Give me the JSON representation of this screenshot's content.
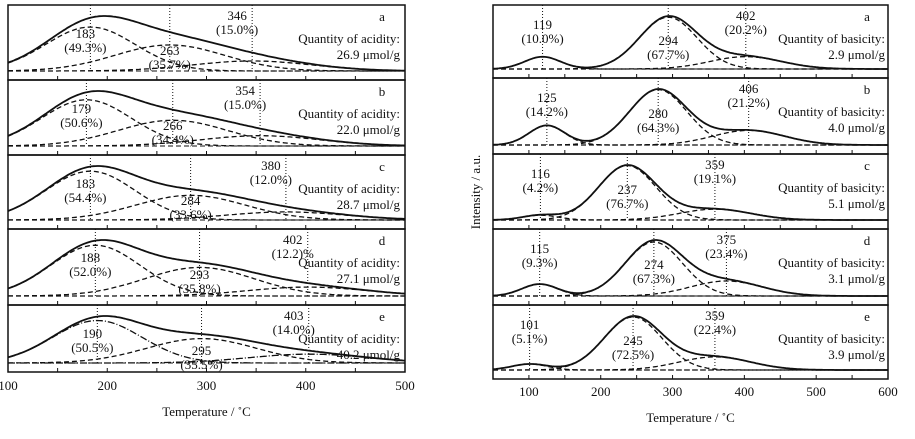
{
  "chart_data": [
    {
      "type": "line",
      "xlabel": "Temperature / ˚C",
      "ylabel": "",
      "xlim": [
        100,
        500
      ],
      "xticks": [
        "100",
        "200",
        "300",
        "400",
        "500"
      ],
      "xtick_values": [
        100,
        200,
        300,
        400,
        500
      ],
      "grid": false,
      "panels": [
        {
          "letter": "a",
          "quantity_label": "Quantity of acidity:",
          "quantity": "26.9  μmol/g",
          "peaks": [
            {
              "temp": 183,
              "share": 49.3,
              "pct_label": "(49.3%)"
            },
            {
              "temp": 263,
              "share": 35.7,
              "pct_label": "(35.7%)"
            },
            {
              "temp": 346,
              "share": 15.0,
              "pct_label": "(15.0%)"
            }
          ]
        },
        {
          "letter": "b",
          "quantity_label": "Quantity of acidity:",
          "quantity": "22.0  μmol/g",
          "peaks": [
            {
              "temp": 179,
              "share": 50.6,
              "pct_label": "(50.6%)"
            },
            {
              "temp": 266,
              "share": 34.4,
              "pct_label": "(34.4%)"
            },
            {
              "temp": 354,
              "share": 15.0,
              "pct_label": "(15.0%)"
            }
          ]
        },
        {
          "letter": "c",
          "quantity_label": "Quantity of acidity:",
          "quantity": "28.7  μmol/g",
          "peaks": [
            {
              "temp": 183,
              "share": 54.4,
              "pct_label": "(54.4%)"
            },
            {
              "temp": 284,
              "share": 33.6,
              "pct_label": "(33.6%)"
            },
            {
              "temp": 380,
              "share": 12.0,
              "pct_label": "(12.0%)"
            }
          ]
        },
        {
          "letter": "d",
          "quantity_label": "Quantity of acidity:",
          "quantity": "27.1  μmol/g",
          "peaks": [
            {
              "temp": 188,
              "share": 52.0,
              "pct_label": "(52.0%)"
            },
            {
              "temp": 293,
              "share": 35.8,
              "pct_label": "(35.8%)"
            },
            {
              "temp": 402,
              "share": 12.2,
              "pct_label": "(12.2)%"
            }
          ]
        },
        {
          "letter": "e",
          "quantity_label": "Quantity of acidity:",
          "quantity": "40.2  μmol/g",
          "peaks": [
            {
              "temp": 190,
              "share": 50.5,
              "pct_label": "(50.5%)"
            },
            {
              "temp": 295,
              "share": 35.5,
              "pct_label": "(35.5%)"
            },
            {
              "temp": 403,
              "share": 14.0,
              "pct_label": "(14.0%)"
            }
          ]
        }
      ]
    },
    {
      "type": "line",
      "xlabel": "Temperature / ˚C",
      "ylabel": "Intensity / a.u.",
      "xlim": [
        50,
        600
      ],
      "xticks": [
        "100",
        "200",
        "300",
        "400",
        "500",
        "600"
      ],
      "xtick_values": [
        100,
        200,
        300,
        400,
        500,
        600
      ],
      "grid": false,
      "panels": [
        {
          "letter": "a",
          "quantity_label": "Quantity of basicity:",
          "quantity": "2.9  μmol/g",
          "peaks": [
            {
              "temp": 119,
              "share": 10.0,
              "pct_label": "(10.0%)"
            },
            {
              "temp": 294,
              "share": 67.7,
              "pct_label": "(67.7%)"
            },
            {
              "temp": 402,
              "share": 20.2,
              "pct_label": "(20.2%)"
            }
          ]
        },
        {
          "letter": "b",
          "quantity_label": "Quantity of basicity:",
          "quantity": "4.0  μmol/g",
          "peaks": [
            {
              "temp": 125,
              "share": 14.2,
              "pct_label": "(14.2%)"
            },
            {
              "temp": 280,
              "share": 64.3,
              "pct_label": "(64.3%)"
            },
            {
              "temp": 406,
              "share": 21.2,
              "pct_label": "(21.2%)"
            }
          ]
        },
        {
          "letter": "c",
          "quantity_label": "Quantity of basicity:",
          "quantity": "5.1  μmol/g",
          "peaks": [
            {
              "temp": 116,
              "share": 4.2,
              "pct_label": "(4.2%)"
            },
            {
              "temp": 237,
              "share": 76.7,
              "pct_label": "(76.7%)"
            },
            {
              "temp": 359,
              "share": 19.1,
              "pct_label": "(19.1%)"
            }
          ]
        },
        {
          "letter": "d",
          "quantity_label": "Quantity of basicity:",
          "quantity": "3.1  μmol/g",
          "peaks": [
            {
              "temp": 115,
              "share": 9.3,
              "pct_label": "(9.3%)"
            },
            {
              "temp": 274,
              "share": 67.3,
              "pct_label": "(67.3%)"
            },
            {
              "temp": 375,
              "share": 23.4,
              "pct_label": "(23.4%)"
            }
          ]
        },
        {
          "letter": "e",
          "quantity_label": "Quantity of basicity:",
          "quantity": "3.9  μmol/g",
          "peaks": [
            {
              "temp": 101,
              "share": 5.1,
              "pct_label": "(5.1%)"
            },
            {
              "temp": 245,
              "share": 72.5,
              "pct_label": "(72.5%)"
            },
            {
              "temp": 359,
              "share": 22.4,
              "pct_label": "(22.4%)"
            }
          ]
        }
      ]
    }
  ]
}
